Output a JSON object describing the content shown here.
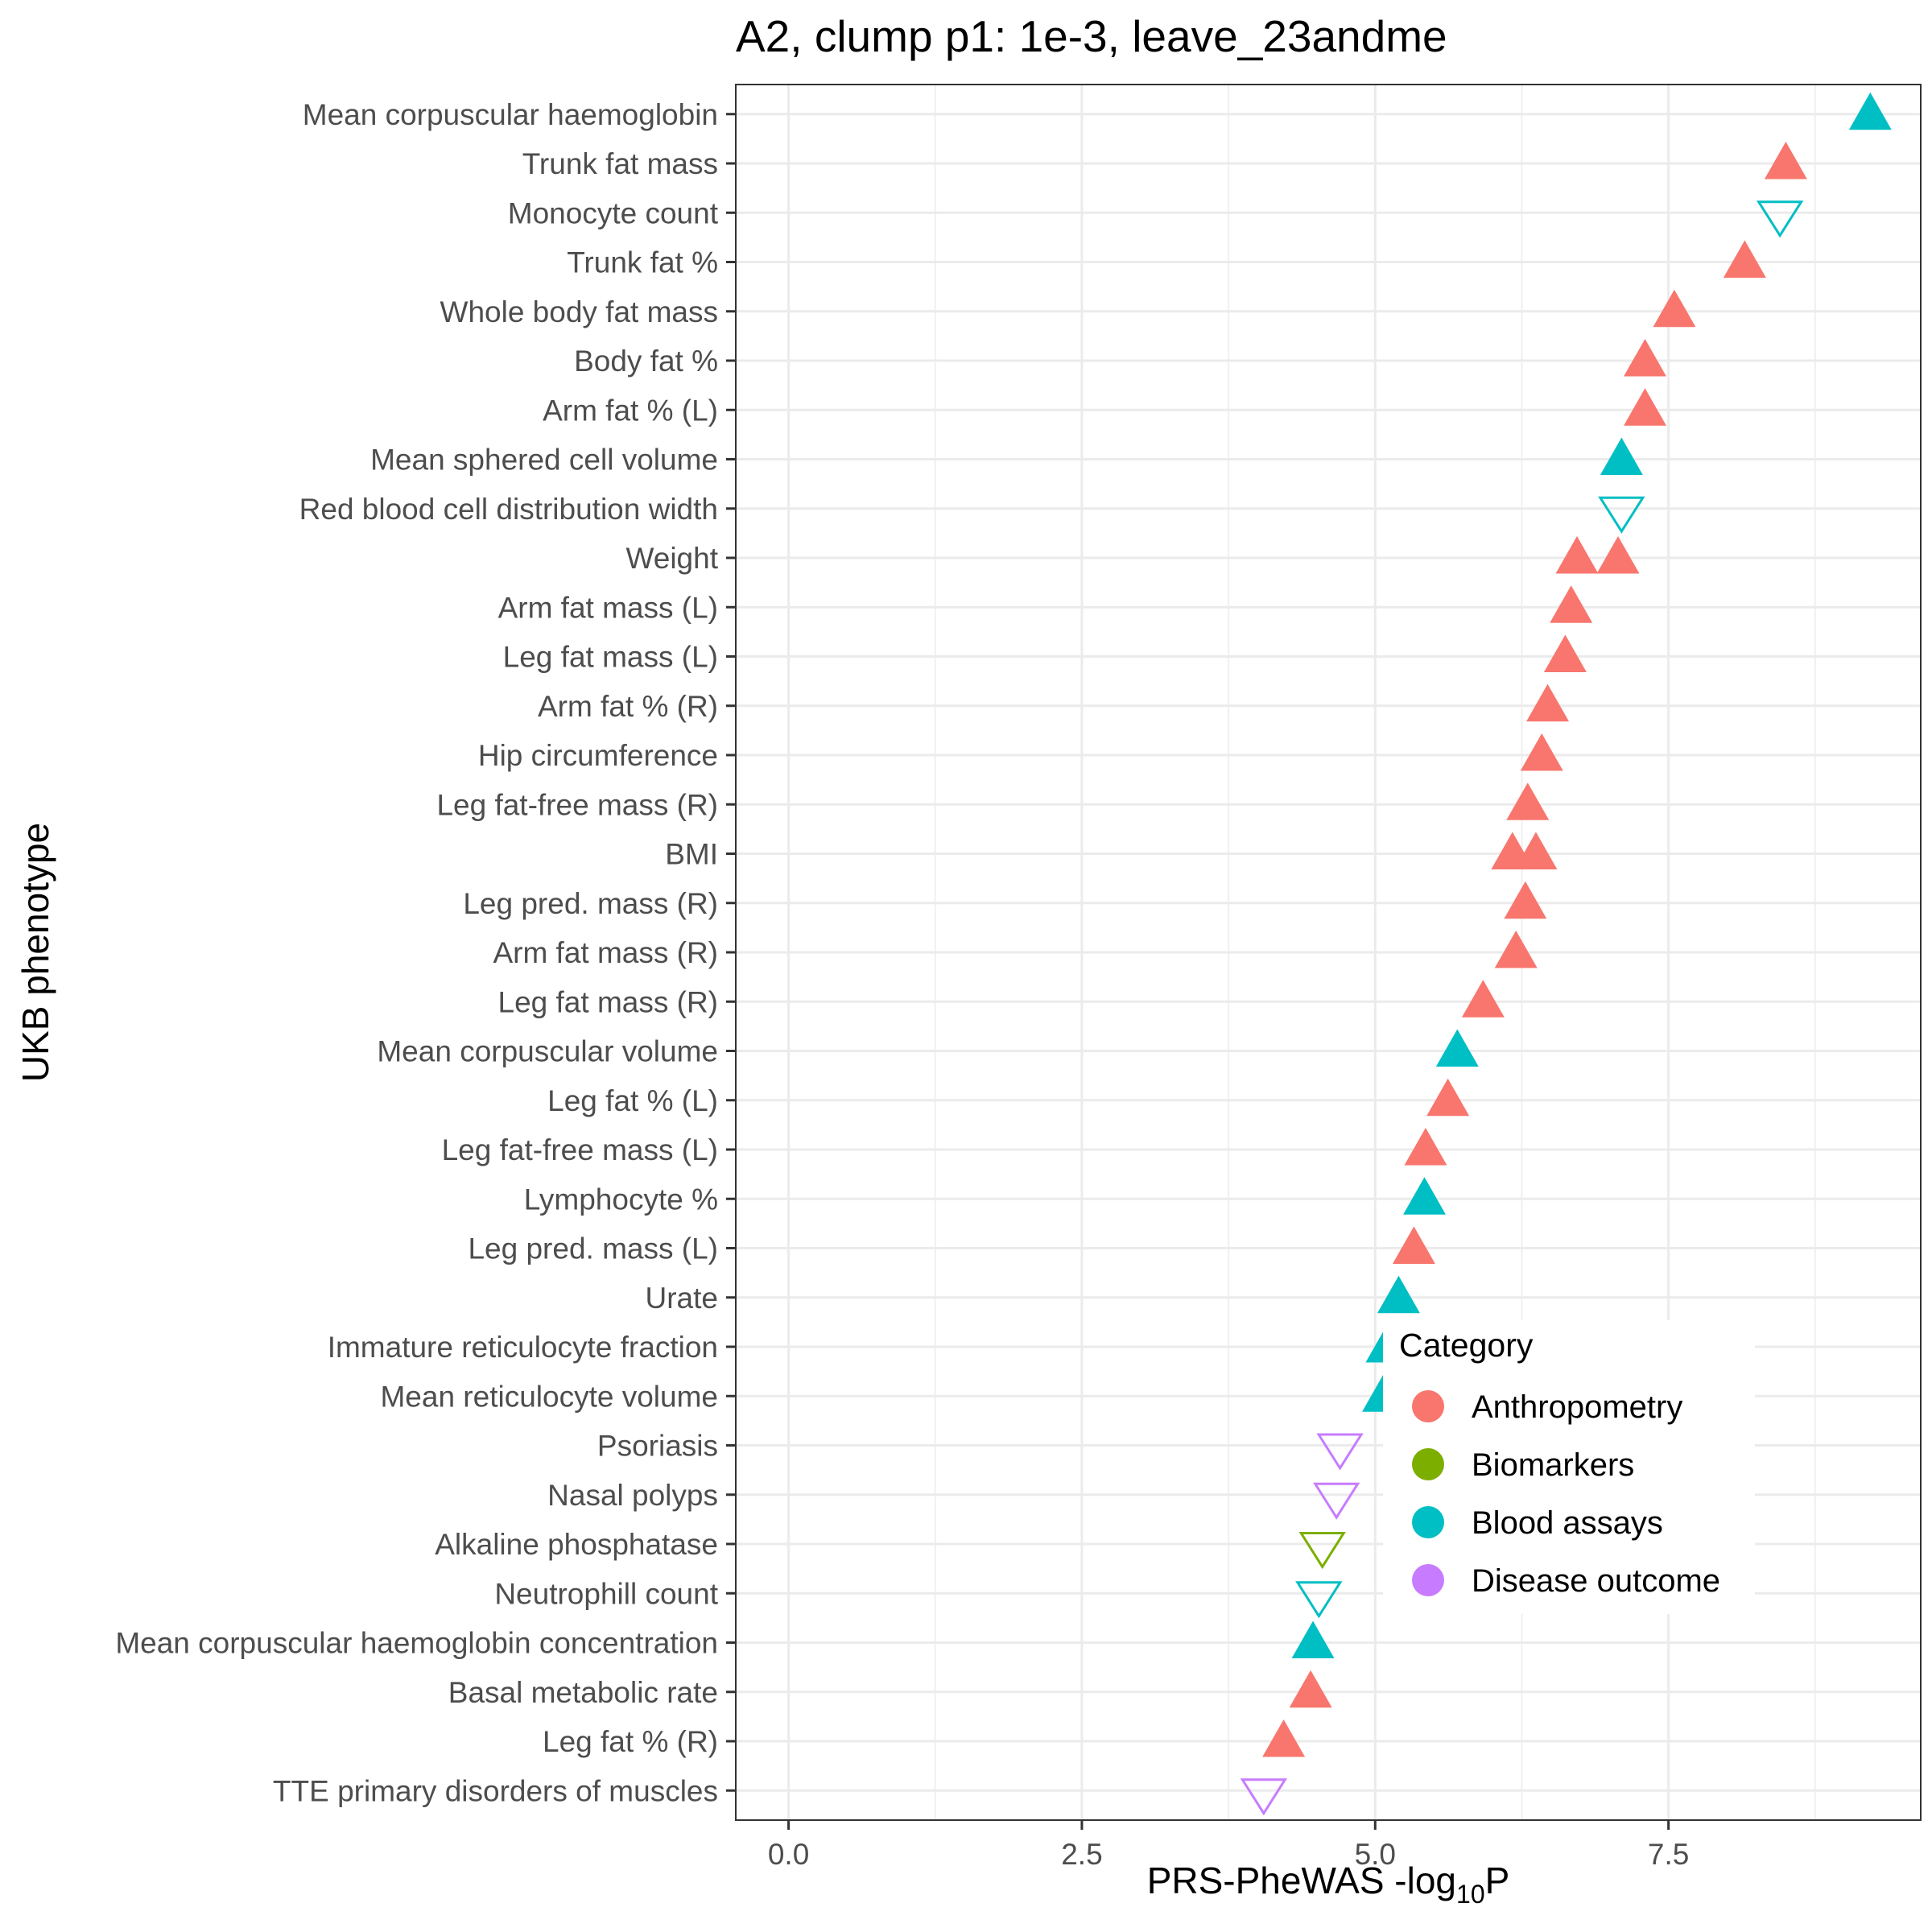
{
  "chart_data": {
    "type": "scatter",
    "title": "A2, clump p1: 1e-3, leave_23andme",
    "xlabel": {
      "main": "PRS-PheWAS -log",
      "sub": "10",
      "suffix": "P"
    },
    "ylabel": "UKB phenotype",
    "xlim": [
      -0.45,
      9.65
    ],
    "xticks": [
      0.0,
      2.5,
      5.0,
      7.5
    ],
    "xtick_labels": [
      "0.0",
      "2.5",
      "5.0",
      "7.5"
    ],
    "grid": true,
    "legend": {
      "title": "Category",
      "position": "inside-bottom-right",
      "entries": [
        {
          "name": "Anthropometry",
          "color": "#F8766D"
        },
        {
          "name": "Biomarkers",
          "color": "#7CAE00"
        },
        {
          "name": "Blood assays",
          "color": "#00BFC4"
        },
        {
          "name": "Disease outcome",
          "color": "#C77CFF"
        }
      ]
    },
    "categories": [
      "Mean corpuscular haemoglobin",
      "Trunk fat mass",
      "Monocyte count",
      "Trunk fat %",
      "Whole body fat mass",
      "Body fat %",
      "Arm fat % (L)",
      "Mean sphered cell volume",
      "Red blood cell distribution width",
      "Weight",
      "Arm fat mass (L)",
      "Leg fat mass (L)",
      "Arm fat % (R)",
      "Hip circumference",
      "Leg fat-free mass (R)",
      "BMI",
      "Leg pred. mass (R)",
      "Arm fat mass (R)",
      "Leg fat mass (R)",
      "Mean corpuscular volume",
      "Leg fat % (L)",
      "Leg fat-free mass (L)",
      "Lymphocyte %",
      "Leg pred. mass (L)",
      "Urate",
      "Immature reticulocyte fraction",
      "Mean reticulocyte volume",
      "Psoriasis",
      "Nasal polyps",
      "Alkaline phosphatase",
      "Neutrophill count",
      "Mean corpuscular haemoglobin concentration",
      "Basal metabolic rate",
      "Leg fat % (R)",
      "TTE primary disorders of muscles"
    ],
    "points": [
      {
        "y": "Mean corpuscular haemoglobin",
        "x": 9.22,
        "category": "Blood assays",
        "direction": "up"
      },
      {
        "y": "Trunk fat mass",
        "x": 8.5,
        "category": "Anthropometry",
        "direction": "up"
      },
      {
        "y": "Monocyte count",
        "x": 8.45,
        "category": "Blood assays",
        "direction": "down"
      },
      {
        "y": "Trunk fat %",
        "x": 8.15,
        "category": "Anthropometry",
        "direction": "up"
      },
      {
        "y": "Whole body fat mass",
        "x": 7.55,
        "category": "Anthropometry",
        "direction": "up"
      },
      {
        "y": "Body fat %",
        "x": 7.3,
        "category": "Anthropometry",
        "direction": "up"
      },
      {
        "y": "Arm fat % (L)",
        "x": 7.3,
        "category": "Anthropometry",
        "direction": "up"
      },
      {
        "y": "Mean sphered cell volume",
        "x": 7.1,
        "category": "Blood assays",
        "direction": "up"
      },
      {
        "y": "Red blood cell distribution width",
        "x": 7.1,
        "category": "Blood assays",
        "direction": "down"
      },
      {
        "y": "Weight",
        "x": 6.72,
        "category": "Anthropometry",
        "direction": "up"
      },
      {
        "y": "Weight",
        "x": 7.07,
        "category": "Anthropometry",
        "direction": "up"
      },
      {
        "y": "Arm fat mass (L)",
        "x": 6.67,
        "category": "Anthropometry",
        "direction": "up"
      },
      {
        "y": "Leg fat mass (L)",
        "x": 6.62,
        "category": "Anthropometry",
        "direction": "up"
      },
      {
        "y": "Arm fat % (R)",
        "x": 6.47,
        "category": "Anthropometry",
        "direction": "up"
      },
      {
        "y": "Hip circumference",
        "x": 6.42,
        "category": "Anthropometry",
        "direction": "up"
      },
      {
        "y": "Leg fat-free mass (R)",
        "x": 6.3,
        "category": "Anthropometry",
        "direction": "up"
      },
      {
        "y": "BMI",
        "x": 6.17,
        "category": "Anthropometry",
        "direction": "up"
      },
      {
        "y": "BMI",
        "x": 6.37,
        "category": "Anthropometry",
        "direction": "up"
      },
      {
        "y": "Leg pred. mass (R)",
        "x": 6.28,
        "category": "Anthropometry",
        "direction": "up"
      },
      {
        "y": "Arm fat mass (R)",
        "x": 6.2,
        "category": "Anthropometry",
        "direction": "up"
      },
      {
        "y": "Leg fat mass (R)",
        "x": 5.92,
        "category": "Anthropometry",
        "direction": "up"
      },
      {
        "y": "Mean corpuscular volume",
        "x": 5.7,
        "category": "Blood assays",
        "direction": "up"
      },
      {
        "y": "Leg fat % (L)",
        "x": 5.62,
        "category": "Anthropometry",
        "direction": "up"
      },
      {
        "y": "Leg fat-free mass (L)",
        "x": 5.43,
        "category": "Anthropometry",
        "direction": "up"
      },
      {
        "y": "Lymphocyte %",
        "x": 5.42,
        "category": "Blood assays",
        "direction": "up"
      },
      {
        "y": "Leg pred. mass (L)",
        "x": 5.33,
        "category": "Anthropometry",
        "direction": "up"
      },
      {
        "y": "Urate",
        "x": 5.2,
        "category": "Blood assays",
        "direction": "up"
      },
      {
        "y": "Immature reticulocyte fraction",
        "x": 5.1,
        "category": "Blood assays",
        "direction": "up"
      },
      {
        "y": "Mean reticulocyte volume",
        "x": 5.07,
        "category": "Blood assays",
        "direction": "up"
      },
      {
        "y": "Psoriasis",
        "x": 4.7,
        "category": "Disease outcome",
        "direction": "down"
      },
      {
        "y": "Nasal polyps",
        "x": 4.67,
        "category": "Disease outcome",
        "direction": "down"
      },
      {
        "y": "Alkaline phosphatase",
        "x": 4.55,
        "category": "Biomarkers",
        "direction": "down"
      },
      {
        "y": "Neutrophill count",
        "x": 4.52,
        "category": "Blood assays",
        "direction": "down"
      },
      {
        "y": "Mean corpuscular haemoglobin concentration",
        "x": 4.47,
        "category": "Blood assays",
        "direction": "up"
      },
      {
        "y": "Basal metabolic rate",
        "x": 4.45,
        "category": "Anthropometry",
        "direction": "up"
      },
      {
        "y": "Leg fat % (R)",
        "x": 4.22,
        "category": "Anthropometry",
        "direction": "up"
      },
      {
        "y": "TTE primary disorders of muscles",
        "x": 4.05,
        "category": "Disease outcome",
        "direction": "down"
      }
    ]
  }
}
